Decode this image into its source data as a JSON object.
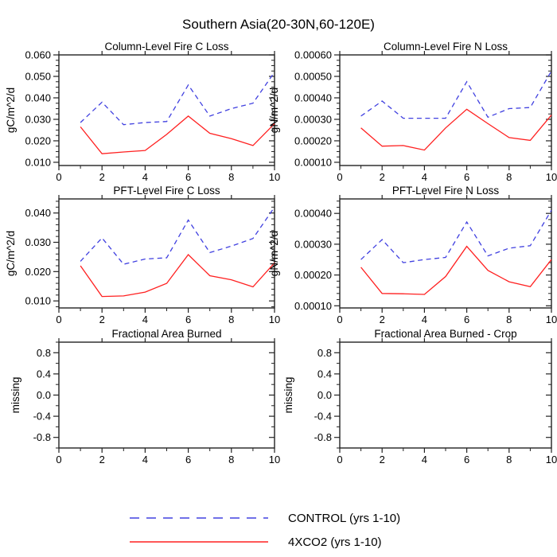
{
  "title": "Southern Asia(20-30N,60-120E)",
  "colors": {
    "control": "#4040e0",
    "co2": "#ff2020",
    "axis": "#222222"
  },
  "legend": {
    "items": [
      {
        "label": "CONTROL (yrs 1-10)",
        "style": "dashed",
        "color": "#4040e0"
      },
      {
        "label": "4XCO2 (yrs 1-10)",
        "style": "solid",
        "color": "#ff2020"
      }
    ]
  },
  "chart_data": [
    {
      "type": "line",
      "title": "Column-Level Fire C Loss",
      "ylabel": "gC/m^2/d",
      "xlim": [
        0,
        10
      ],
      "xticks": [
        0,
        2,
        4,
        6,
        8,
        10
      ],
      "xminors": [
        1,
        3,
        5,
        7,
        9
      ],
      "ylim": [
        0.0085,
        0.06
      ],
      "yminor_step": 0.0025,
      "yticks": [
        {
          "v": 0.01,
          "label": "0.010"
        },
        {
          "v": 0.02,
          "label": "0.020"
        },
        {
          "v": 0.03,
          "label": "0.030"
        },
        {
          "v": 0.04,
          "label": "0.040"
        },
        {
          "v": 0.05,
          "label": "0.050"
        },
        {
          "v": 0.06,
          "label": "0.060"
        }
      ],
      "x": [
        1,
        2,
        3,
        4,
        5,
        6,
        7,
        8,
        9,
        10
      ],
      "series": [
        {
          "name": "CONTROL (yrs 1-10)",
          "color": "#4040e0",
          "dashed": true,
          "values": [
            0.0285,
            0.038,
            0.0275,
            0.0285,
            0.029,
            0.046,
            0.0315,
            0.035,
            0.0375,
            0.052
          ]
        },
        {
          "name": "4XCO2 (yrs 1-10)",
          "color": "#ff2020",
          "dashed": false,
          "values": [
            0.0265,
            0.014,
            0.0148,
            0.0155,
            0.023,
            0.0315,
            0.0235,
            0.021,
            0.0178,
            0.028
          ]
        }
      ]
    },
    {
      "type": "line",
      "title": "Column-Level Fire N Loss",
      "ylabel": "gN/m^2/d",
      "xlim": [
        0,
        10
      ],
      "xticks": [
        0,
        2,
        4,
        6,
        8,
        10
      ],
      "xminors": [
        1,
        3,
        5,
        7,
        9
      ],
      "ylim": [
        8.5e-05,
        0.0006
      ],
      "yminor_step": 2.5e-05,
      "yticks": [
        {
          "v": 0.0001,
          "label": "0.00010"
        },
        {
          "v": 0.0002,
          "label": "0.00020"
        },
        {
          "v": 0.0003,
          "label": "0.00030"
        },
        {
          "v": 0.0004,
          "label": "0.00040"
        },
        {
          "v": 0.0005,
          "label": "0.00050"
        },
        {
          "v": 0.0006,
          "label": "0.00060"
        }
      ],
      "x": [
        1,
        2,
        3,
        4,
        5,
        6,
        7,
        8,
        9,
        10
      ],
      "series": [
        {
          "name": "CONTROL (yrs 1-10)",
          "color": "#4040e0",
          "dashed": true,
          "values": [
            0.000315,
            0.000385,
            0.000305,
            0.000305,
            0.000305,
            0.000475,
            0.00031,
            0.00035,
            0.000355,
            0.000525
          ]
        },
        {
          "name": "4XCO2 (yrs 1-10)",
          "color": "#ff2020",
          "dashed": false,
          "values": [
            0.00026,
            0.000175,
            0.000178,
            0.000157,
            0.00026,
            0.000347,
            0.00028,
            0.000215,
            0.000202,
            0.00032
          ]
        }
      ]
    },
    {
      "type": "line",
      "title": "PFT-Level Fire C Loss",
      "ylabel": "gC/m^2/d",
      "xlim": [
        0,
        10
      ],
      "xticks": [
        0,
        2,
        4,
        6,
        8,
        10
      ],
      "xminors": [
        1,
        3,
        5,
        7,
        9
      ],
      "ylim": [
        0.0076,
        0.0448
      ],
      "yminor_step": 0.002,
      "yticks": [
        {
          "v": 0.01,
          "label": "0.010"
        },
        {
          "v": 0.02,
          "label": "0.020"
        },
        {
          "v": 0.03,
          "label": "0.030"
        },
        {
          "v": 0.04,
          "label": "0.040"
        }
      ],
      "x": [
        1,
        2,
        3,
        4,
        5,
        6,
        7,
        8,
        9,
        10
      ],
      "series": [
        {
          "name": "CONTROL (yrs 1-10)",
          "color": "#4040e0",
          "dashed": true,
          "values": [
            0.0235,
            0.0315,
            0.0225,
            0.0243,
            0.0247,
            0.0376,
            0.0265,
            0.0287,
            0.0313,
            0.042
          ]
        },
        {
          "name": "4XCO2 (yrs 1-10)",
          "color": "#ff2020",
          "dashed": false,
          "values": [
            0.022,
            0.0115,
            0.0117,
            0.013,
            0.016,
            0.0258,
            0.0186,
            0.0172,
            0.0148,
            0.023
          ]
        }
      ]
    },
    {
      "type": "line",
      "title": "PFT-Level Fire N Loss",
      "ylabel": "gN/m^2/d",
      "xlim": [
        0,
        10
      ],
      "xticks": [
        0,
        2,
        4,
        6,
        8,
        10
      ],
      "xminors": [
        1,
        3,
        5,
        7,
        9
      ],
      "ylim": [
        9.3e-05,
        0.000447
      ],
      "yminor_step": 2e-05,
      "yticks": [
        {
          "v": 0.0001,
          "label": "0.00010"
        },
        {
          "v": 0.0002,
          "label": "0.00020"
        },
        {
          "v": 0.0003,
          "label": "0.00030"
        },
        {
          "v": 0.0004,
          "label": "0.00040"
        }
      ],
      "x": [
        1,
        2,
        3,
        4,
        5,
        6,
        7,
        8,
        9,
        10
      ],
      "series": [
        {
          "name": "CONTROL (yrs 1-10)",
          "color": "#4040e0",
          "dashed": true,
          "values": [
            0.00025,
            0.000315,
            0.00024,
            0.00025,
            0.000257,
            0.000372,
            0.000262,
            0.000287,
            0.000295,
            0.00041
          ]
        },
        {
          "name": "4XCO2 (yrs 1-10)",
          "color": "#ff2020",
          "dashed": false,
          "values": [
            0.000225,
            0.00014,
            0.000139,
            0.000137,
            0.000195,
            0.000293,
            0.000215,
            0.000178,
            0.000162,
            0.00025
          ]
        }
      ]
    },
    {
      "type": "line",
      "title": "Fractional Area Burned",
      "ylabel": "missing",
      "xlim": [
        0,
        10
      ],
      "xticks": [
        0,
        2,
        4,
        6,
        8,
        10
      ],
      "xminors": [
        1,
        3,
        5,
        7,
        9
      ],
      "ylim": [
        -1,
        1
      ],
      "yminor_step": 0.2,
      "yticks": [
        {
          "v": -0.8,
          "label": "-0.8"
        },
        {
          "v": -0.4,
          "label": "-0.4"
        },
        {
          "v": 0.0,
          "label": "0.0"
        },
        {
          "v": 0.4,
          "label": "0.4"
        },
        {
          "v": 0.8,
          "label": "0.8"
        }
      ],
      "x": [],
      "series": []
    },
    {
      "type": "line",
      "title": "Fractional Area Burned - Crop",
      "ylabel": "missing",
      "xlim": [
        0,
        10
      ],
      "xticks": [
        0,
        2,
        4,
        6,
        8,
        10
      ],
      "xminors": [
        1,
        3,
        5,
        7,
        9
      ],
      "ylim": [
        -1,
        1
      ],
      "yminor_step": 0.2,
      "yticks": [
        {
          "v": -0.8,
          "label": "-0.8"
        },
        {
          "v": -0.4,
          "label": "-0.4"
        },
        {
          "v": 0.0,
          "label": "0.0"
        },
        {
          "v": 0.4,
          "label": "0.4"
        },
        {
          "v": 0.8,
          "label": "0.8"
        }
      ],
      "x": [],
      "series": []
    }
  ]
}
